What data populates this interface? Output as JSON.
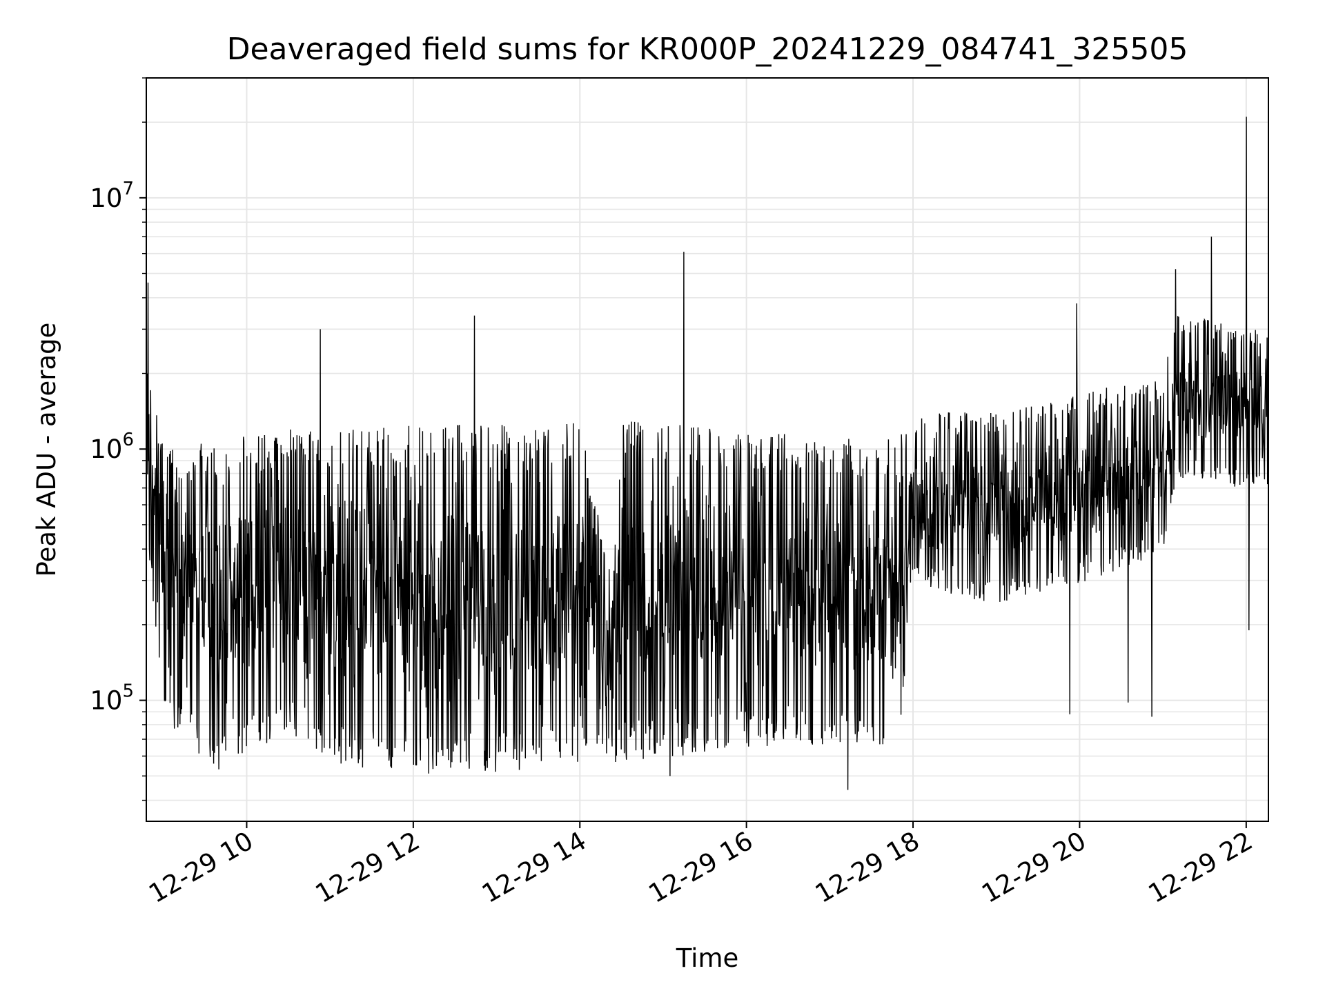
{
  "chart_data": {
    "type": "line",
    "title": "Deaveraged field sums for KR000P_20241229_084741_325505",
    "xlabel": "Time",
    "ylabel": "Peak ADU - average",
    "xlim": [
      "12-29 08:47:41",
      "12-29 22:16"
    ],
    "ylim": [
      33000,
      30000000
    ],
    "yscale": "log",
    "grid": true,
    "line_color": "#000000",
    "grid_color": "#e6e6e6",
    "x_ticks": [
      {
        "t": "12-29 10:00",
        "label": "12-29 10"
      },
      {
        "t": "12-29 12:00",
        "label": "12-29 12"
      },
      {
        "t": "12-29 14:00",
        "label": "12-29 14"
      },
      {
        "t": "12-29 16:00",
        "label": "12-29 16"
      },
      {
        "t": "12-29 18:00",
        "label": "12-29 18"
      },
      {
        "t": "12-29 20:00",
        "label": "12-29 20"
      },
      {
        "t": "12-29 22:00",
        "label": "12-29 22"
      }
    ],
    "y_ticks": [
      {
        "value": 100000,
        "base": "10",
        "exp": "5"
      },
      {
        "value": 1000000,
        "base": "10",
        "exp": "6"
      },
      {
        "value": 10000000,
        "base": "10",
        "exp": "7"
      }
    ],
    "series_profile": [
      {
        "t": "12-29 08:48",
        "low": 500000,
        "high": 2400000
      },
      {
        "t": "12-29 09:00",
        "low": 90000,
        "high": 1000000
      },
      {
        "t": "12-29 09:40",
        "low": 55000,
        "high": 1100000
      },
      {
        "t": "12-29 10:30",
        "low": 80000,
        "high": 1200000
      },
      {
        "t": "12-29 11:00",
        "low": 60000,
        "high": 1200000
      },
      {
        "t": "12-29 12:00",
        "low": 55000,
        "high": 1250000
      },
      {
        "t": "12-29 13:00",
        "low": 55000,
        "high": 1250000
      },
      {
        "t": "12-29 14:00",
        "low": 60000,
        "high": 1300000
      },
      {
        "t": "12-29 14:20",
        "low": 60000,
        "high": 350000
      },
      {
        "t": "12-29 14:30",
        "low": 60000,
        "high": 1300000
      },
      {
        "t": "12-29 16:00",
        "low": 70000,
        "high": 1200000
      },
      {
        "t": "12-29 17:00",
        "low": 70000,
        "high": 1100000
      },
      {
        "t": "12-29 17:50",
        "low": 70000,
        "high": 1100000
      },
      {
        "t": "12-29 18:00",
        "low": 300000,
        "high": 1400000
      },
      {
        "t": "12-29 19:00",
        "low": 250000,
        "high": 1400000
      },
      {
        "t": "12-29 20:00",
        "low": 300000,
        "high": 1700000
      },
      {
        "t": "12-29 21:00",
        "low": 400000,
        "high": 1900000
      },
      {
        "t": "12-29 21:10",
        "low": 800000,
        "high": 3500000
      },
      {
        "t": "12-29 22:16",
        "low": 700000,
        "high": 3000000
      }
    ],
    "spikes": [
      {
        "t": "12-29 08:49",
        "value": 4600000
      },
      {
        "t": "12-29 10:53",
        "value": 3000000
      },
      {
        "t": "12-29 12:44",
        "value": 3400000
      },
      {
        "t": "12-29 15:15",
        "value": 6100000
      },
      {
        "t": "12-29 19:58",
        "value": 3800000
      },
      {
        "t": "12-29 21:09",
        "value": 5200000
      },
      {
        "t": "12-29 21:35",
        "value": 7000000
      },
      {
        "t": "12-29 22:00",
        "value": 21000000
      }
    ],
    "dips": [
      {
        "t": "12-29 15:05",
        "value": 50000
      },
      {
        "t": "12-29 17:13",
        "value": 44000
      },
      {
        "t": "12-29 19:53",
        "value": 88000
      },
      {
        "t": "12-29 20:35",
        "value": 98000
      },
      {
        "t": "12-29 20:52",
        "value": 86000
      },
      {
        "t": "12-29 22:02",
        "value": 190000
      }
    ]
  }
}
